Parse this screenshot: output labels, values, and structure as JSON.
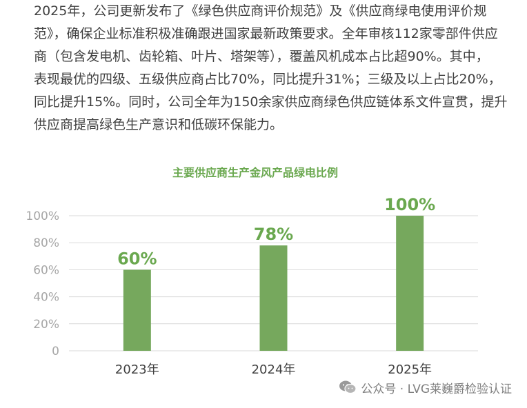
{
  "paragraph": {
    "lines": [
      "2025年，公司更新发布了《绿色供应商评价规范》及《供应商绿电使用评价规",
      "范》，确保企业标准积极准确跟进国家最新政策要求。全年审核112家零部件供应",
      "商（包含发电机、齿轮箱、叶片、塔架等），覆盖风机成本占比超90%。其中，",
      "表现最优的四级、五级供应商占比70%，同比提升31%；三级及以上占比20%，",
      "同比提升15%。同时，公司全年为150余家供应商绿色供应链体系文件宣贯，提升",
      "供应商提高绿色生产意识和低碳环保能力。"
    ]
  },
  "chart_data": {
    "type": "bar",
    "title": "主要供应商生产金风产品绿电比例",
    "categories": [
      "2023年",
      "2024年",
      "2025年"
    ],
    "values": [
      60,
      78,
      100
    ],
    "data_labels": [
      "60%",
      "78%",
      "100%"
    ],
    "yticks": [
      "0",
      "20%",
      "40%",
      "60%",
      "80%",
      "100%"
    ],
    "ylim": [
      0,
      100
    ],
    "grid": true,
    "bar_color": "#76a85d",
    "label_color": "#6aa84f",
    "xlabel": "",
    "ylabel": ""
  },
  "watermark": {
    "text": "公众号 · LVG莱巍爵检验认证",
    "icon": "wechat-icon"
  }
}
